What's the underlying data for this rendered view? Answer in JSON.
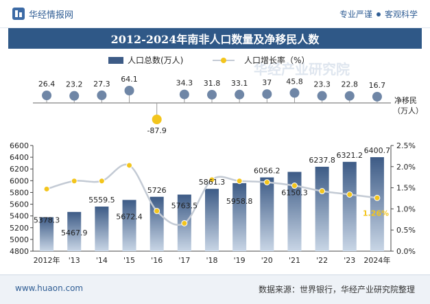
{
  "header": {
    "brand": "华经情报网",
    "slogan_left": "专业严谨",
    "slogan_right": "客观科学"
  },
  "footer": {
    "website": "www.huaon.com",
    "source": "数据来源：世界银行，华经产业研究院整理"
  },
  "watermark": "华经产业研究院",
  "chart_data": {
    "type": "bar+line",
    "title": "2012-2024年南非人口数量及净移民人数",
    "categories": [
      "2012年",
      "'13",
      "'14",
      "'15",
      "'16",
      "'17",
      "'18",
      "'19",
      "'20",
      "'21",
      "'22",
      "'23",
      "2024年"
    ],
    "legend": {
      "bar": "人口总数(万人)",
      "line": "人口增长率（%）"
    },
    "population": {
      "name": "人口总数(万人)",
      "values": [
        5378.3,
        5467.9,
        5559.5,
        5672.4,
        5726,
        5763.5,
        5861.3,
        5958.8,
        6056.2,
        6150.3,
        6237.8,
        6321.2,
        6400.7
      ],
      "labels": [
        "5378.3",
        "5467.9",
        "5559.5",
        "5672.4",
        "5726",
        "5763.5",
        "5861.3",
        "5958.8",
        "6056.2",
        "6150.3",
        "6237.8",
        "6321.2",
        "6400.7"
      ]
    },
    "growth_rate": {
      "name": "人口增长率（%）",
      "values": [
        1.47,
        1.66,
        1.66,
        2.03,
        0.95,
        0.66,
        1.69,
        1.66,
        1.63,
        1.55,
        1.42,
        1.34,
        1.26
      ],
      "last_label": "1.26%"
    },
    "net_migration": {
      "name": "净移民",
      "unit_label": [
        "净移民",
        "（万人）"
      ],
      "values": [
        26.4,
        23.2,
        27.3,
        64.1,
        -87.9,
        34.3,
        31.8,
        33.1,
        37,
        45.8,
        23.3,
        22.8,
        16.7
      ],
      "labels": [
        "26.4",
        "23.2",
        "27.3",
        "64.1",
        "-87.9",
        "34.3",
        "31.8",
        "33.1",
        "37",
        "45.8",
        "23.3",
        "22.8",
        "16.7"
      ]
    },
    "y_left": {
      "min": 4800,
      "max": 6600,
      "ticks": [
        "4800",
        "5000",
        "5200",
        "5400",
        "5600",
        "5800",
        "6000",
        "6200",
        "6400",
        "6600"
      ]
    },
    "y_right": {
      "min": 0,
      "max": 2.5,
      "ticks": [
        "0.0%",
        "0.5%",
        "1.0%",
        "1.5%",
        "2.0%",
        "2.5%"
      ]
    },
    "colors": {
      "bar_top": "#3d5b86",
      "bar_bottom": "#c9d6e6",
      "line": "#c3cad4",
      "marker": "#f3c51d",
      "migration_dot": "#6f86a6",
      "title_bg": "#2f5887"
    }
  }
}
